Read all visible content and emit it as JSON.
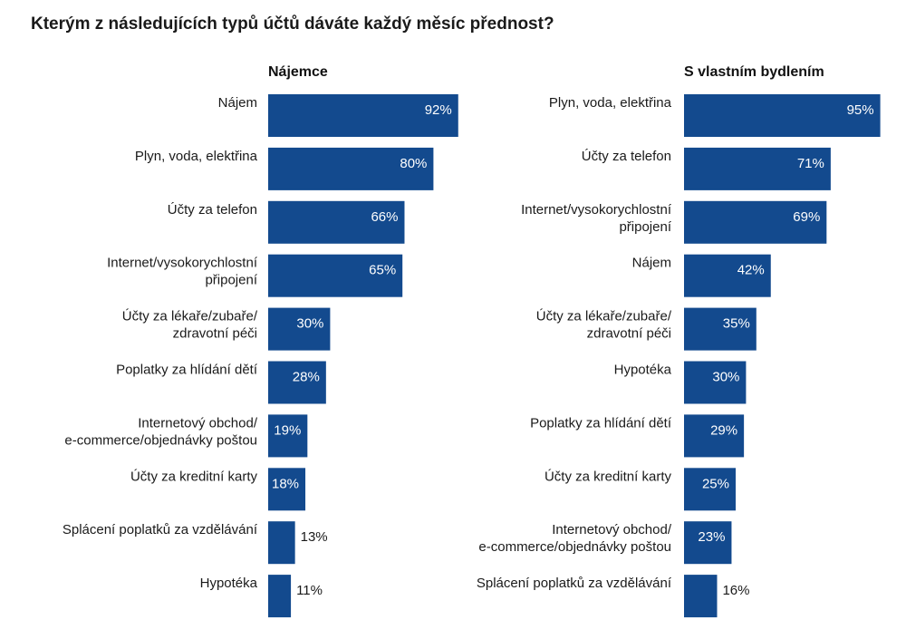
{
  "title": "Kterým z následujících typů účtů dáváte každý měsíc přednost?",
  "colors": {
    "bar": "#134a8e",
    "text": "#1a1a1a",
    "inner_label": "#ffffff"
  },
  "chart_data": [
    {
      "type": "bar",
      "orientation": "horizontal",
      "title": "Nájemce",
      "unit": "%",
      "categories": [
        [
          "Nájem"
        ],
        [
          "Plyn, voda, elektřina"
        ],
        [
          "Účty za telefon"
        ],
        [
          "Internet/vysokorychlostní",
          "připojení"
        ],
        [
          "Účty za lékaře/zubaře/",
          "zdravotní péči"
        ],
        [
          "Poplatky za hlídání dětí"
        ],
        [
          "Internetový obchod/",
          "e-commerce/objednávky poštou"
        ],
        [
          "Účty za kreditní karty"
        ],
        [
          "Splácení poplatků za vzdělávání"
        ],
        [
          "Hypotéka"
        ]
      ],
      "values": [
        92,
        80,
        66,
        65,
        30,
        28,
        19,
        18,
        13,
        11
      ],
      "labels": [
        "92%",
        "80%",
        "66%",
        "65%",
        "30%",
        "28%",
        "19%",
        "18%",
        "13%",
        "11%"
      ],
      "xlim": [
        0,
        100
      ]
    },
    {
      "type": "bar",
      "orientation": "horizontal",
      "title": "S vlastním bydlením",
      "unit": "%",
      "categories": [
        [
          "Plyn, voda, elektřina"
        ],
        [
          "Účty za telefon"
        ],
        [
          "Internet/vysokorychlostní",
          "připojení"
        ],
        [
          "Nájem"
        ],
        [
          "Účty za lékaře/zubaře/",
          "zdravotní péči"
        ],
        [
          "Hypotéka"
        ],
        [
          "Poplatky za hlídání dětí"
        ],
        [
          "Účty za kreditní karty"
        ],
        [
          "Internetový obchod/",
          "e-commerce/objednávky poštou"
        ],
        [
          "Splácení poplatků za vzdělávání"
        ]
      ],
      "values": [
        95,
        71,
        69,
        42,
        35,
        30,
        29,
        25,
        23,
        16
      ],
      "labels": [
        "95%",
        "71%",
        "69%",
        "42%",
        "35%",
        "30%",
        "29%",
        "25%",
        "23%",
        "16%"
      ],
      "xlim": [
        0,
        100
      ]
    }
  ]
}
